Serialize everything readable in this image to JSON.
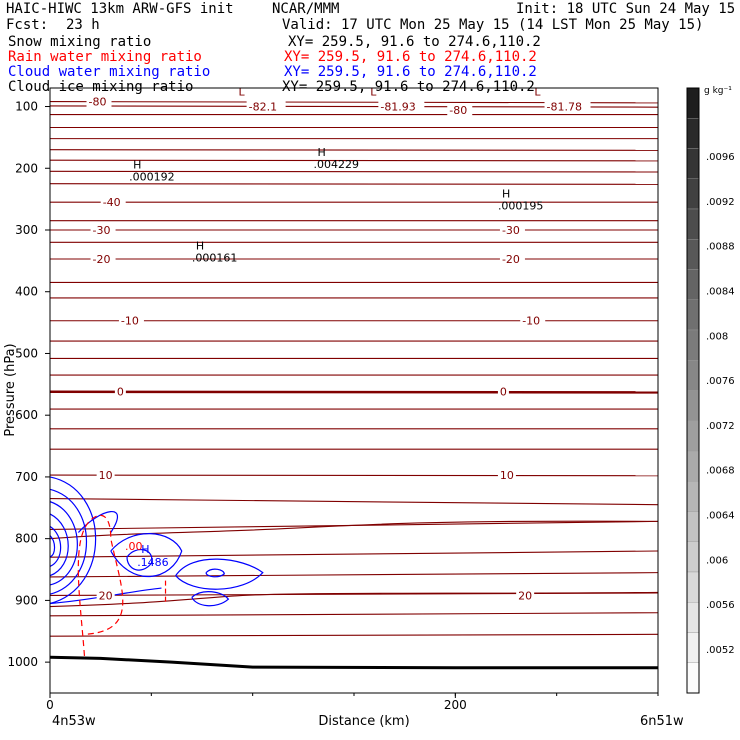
{
  "header": {
    "model": "HAIC-HIWC 13km ARW-GFS init",
    "center": "NCAR/MMM",
    "init": "Init: 18 UTC Sun 24 May 15",
    "fcst_label": "Fcst:",
    "fcst_value": "23 h",
    "valid": "Valid: 17 UTC Mon 25 May 15 (14 LST Mon 25 May 15)"
  },
  "fields": [
    {
      "name": "Snow mixing ratio",
      "xy": "XY= 259.5, 91.6 to 274.6,110.2",
      "color": "#000000"
    },
    {
      "name": "Rain water mixing ratio",
      "xy": "XY= 259.5, 91.6 to 274.6,110.2",
      "color": "#ff0000"
    },
    {
      "name": "Cloud water mixing ratio",
      "xy": "XY= 259.5, 91.6 to 274.6,110.2",
      "color": "#0000ff"
    },
    {
      "name": "Cloud ice mixing ratio",
      "xy": "XY= 259.5, 91.6 to 274.6,110.2",
      "color": "#000000"
    }
  ],
  "chart_data": {
    "type": "contour",
    "xlabel": "Distance (km)",
    "ylabel": "Pressure (hPa)",
    "x_ticks": [
      0,
      200
    ],
    "y_ticks": [
      100,
      200,
      300,
      400,
      500,
      600,
      700,
      800,
      900,
      1000
    ],
    "ylim": [
      1050,
      70
    ],
    "xlim": [
      0,
      300
    ],
    "x_left_label": "4n53w",
    "x_right_label": "6n51w",
    "temperature_color": "#800000",
    "temperature_labels": [
      {
        "text": "-80",
        "x": 19,
        "p": 92
      },
      {
        "text": "-82.1",
        "x": 98,
        "p": 100
      },
      {
        "text": "-81.93",
        "x": 163,
        "p": 100
      },
      {
        "text": "-80",
        "x": 197,
        "p": 106
      },
      {
        "text": "-81.78",
        "x": 245,
        "p": 100
      },
      {
        "text": "-40",
        "x": 26,
        "p": 255
      },
      {
        "text": "-30",
        "x": 21,
        "p": 300
      },
      {
        "text": "-30",
        "x": 223,
        "p": 300
      },
      {
        "text": "-20",
        "x": 21,
        "p": 347
      },
      {
        "text": "-20",
        "x": 223,
        "p": 347
      },
      {
        "text": "-10",
        "x": 35,
        "p": 447
      },
      {
        "text": "-10",
        "x": 233,
        "p": 447
      },
      {
        "text": "0",
        "x": 33,
        "p": 562
      },
      {
        "text": "0",
        "x": 222,
        "p": 562
      },
      {
        "text": "10",
        "x": 24,
        "p": 697
      },
      {
        "text": "10",
        "x": 222,
        "p": 697
      },
      {
        "text": "20",
        "x": 24,
        "p": 892
      },
      {
        "text": "20",
        "x": 231,
        "p": 892
      }
    ],
    "extrema": [
      {
        "mark": "L",
        "x": 93,
        "p": 82
      },
      {
        "mark": "L",
        "x": 158,
        "p": 82
      },
      {
        "mark": "L",
        "x": 239,
        "p": 82
      },
      {
        "mark": "H",
        "value": ".000192",
        "x": 41,
        "p": 200
      },
      {
        "mark": "H",
        "value": ".004229",
        "x": 132,
        "p": 180
      },
      {
        "mark": "H",
        "value": ".000195",
        "x": 223,
        "p": 247
      },
      {
        "mark": "H",
        "value": ".000161",
        "x": 72,
        "p": 332
      }
    ],
    "cloud_water_max": {
      "mark": "H",
      "value": ".1486",
      "x": 45,
      "p": 823
    },
    "rain_water_label": {
      "value": ".00",
      "x": 37,
      "p": 818
    },
    "colorbar": {
      "units": "g kg⁻¹",
      "labels": [
        ".0096",
        ".0092",
        ".0088",
        ".0084",
        ".008",
        ".0076",
        ".0072",
        ".0068",
        ".0064",
        ".006",
        ".0056",
        ".0052"
      ]
    }
  }
}
